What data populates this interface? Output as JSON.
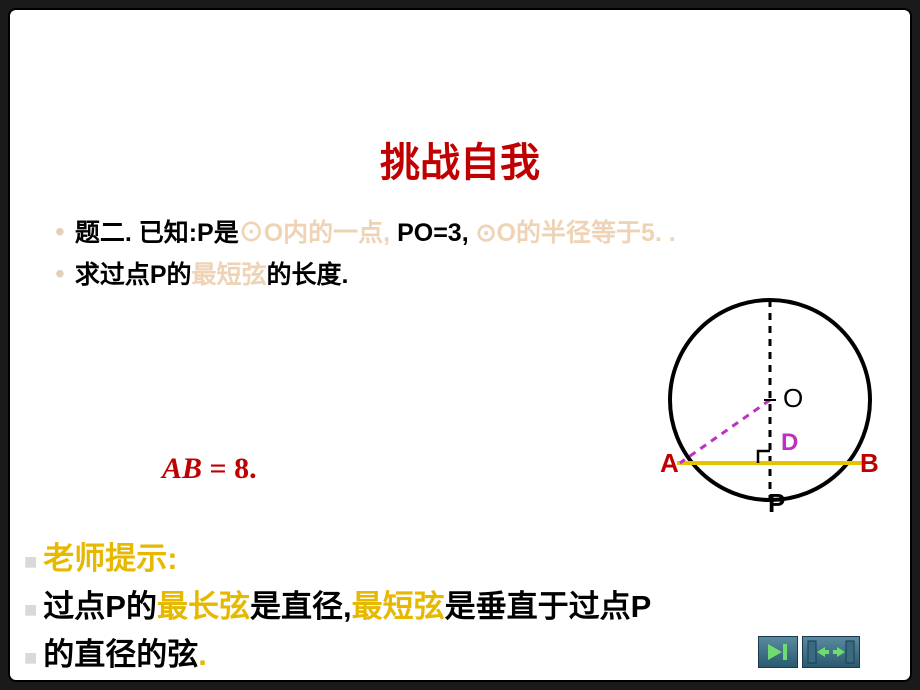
{
  "title": "挑战自我",
  "bullets": [
    {
      "segments": [
        {
          "text": "题二. 已知:P是",
          "style": "black-bold"
        },
        {
          "text": "⊙O内的一点,",
          "style": "peach"
        },
        {
          "text": " PO=3, ",
          "style": "black-bold"
        },
        {
          "text": "⊙O的半径等于5. .",
          "style": "peach"
        }
      ]
    },
    {
      "segments": [
        {
          "text": "求过点P的",
          "style": "black-bold"
        },
        {
          "text": "最短弦",
          "style": "peach"
        },
        {
          "text": "的长度.",
          "style": "black-bold"
        }
      ]
    }
  ],
  "formula_lhs": "AB",
  "formula_op": " = ",
  "formula_rhs": "8.",
  "diagram": {
    "labels": {
      "O": "O",
      "D": "D",
      "A": "A",
      "B": "B",
      "P": "P"
    },
    "circle_stroke": "#000000",
    "chord_color": "#e6c200",
    "radius_color": "#c030c0",
    "dash_color": "#000000"
  },
  "hints": [
    [
      {
        "text": "老师提示:",
        "style": "yellow"
      }
    ],
    [
      {
        "text": "过点P的",
        "style": "black-bold"
      },
      {
        "text": "最长弦",
        "style": "yellow"
      },
      {
        "text": "是直径, ",
        "style": "black-bold"
      },
      {
        "text": "最短弦",
        "style": "yellow"
      },
      {
        "text": "是垂直于过点P",
        "style": "black-bold"
      }
    ],
    [
      {
        "text": "的直径的弦",
        "style": "black-bold"
      },
      {
        "text": ".",
        "style": "yellow"
      }
    ]
  ],
  "colors": {
    "title": "#c00000",
    "formula": "#c00000",
    "peach": "#efd3b5",
    "yellow": "#e6b800",
    "marker_square": "#d9d9d9",
    "marker_bullet": "#e4d0ba",
    "slide_bg": "#ffffff",
    "outer_bg": "#1a1a1a"
  },
  "nav": {
    "next_icon": "play-next-icon",
    "door_icon": "exit-doors-icon"
  }
}
